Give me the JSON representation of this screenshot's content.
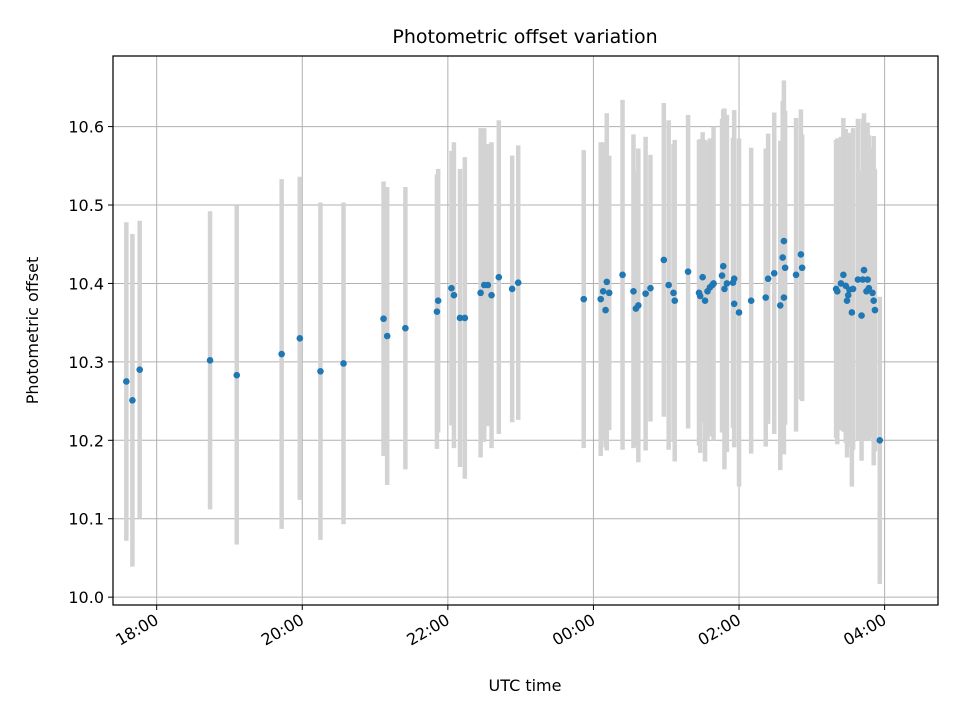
{
  "chart_data": {
    "type": "scatter",
    "title": "Photometric offset variation",
    "xlabel": "UTC time",
    "ylabel": "Photometric offset",
    "grid": true,
    "ylim": [
      9.99,
      10.69
    ],
    "xlim": [
      "17:24",
      "04:44"
    ],
    "yticks": [
      "10.0",
      "10.1",
      "10.2",
      "10.3",
      "10.4",
      "10.5",
      "10.6"
    ],
    "xticks": [
      "18:00",
      "20:00",
      "22:00",
      "00:00",
      "02:00",
      "04:00"
    ],
    "colors": {
      "marker": "#1f77b4",
      "errorbar": "#d3d3d3",
      "grid": "#b0b0b0"
    },
    "series": [
      {
        "points": [
          {
            "x": "17:35",
            "y": 10.275,
            "err": 0.203
          },
          {
            "x": "17:40",
            "y": 10.251,
            "err": 0.212
          },
          {
            "x": "17:46",
            "y": 10.29,
            "err": 0.19
          },
          {
            "x": "18:44",
            "y": 10.302,
            "err": 0.19
          },
          {
            "x": "19:06",
            "y": 10.283,
            "err": 0.216
          },
          {
            "x": "19:43",
            "y": 10.31,
            "err": 0.223
          },
          {
            "x": "19:58",
            "y": 10.33,
            "err": 0.206
          },
          {
            "x": "20:15",
            "y": 10.288,
            "err": 0.215
          },
          {
            "x": "20:34",
            "y": 10.298,
            "err": 0.205
          },
          {
            "x": "21:07",
            "y": 10.355,
            "err": 0.175
          },
          {
            "x": "21:10",
            "y": 10.333,
            "err": 0.19
          },
          {
            "x": "21:25",
            "y": 10.343,
            "err": 0.18
          },
          {
            "x": "21:51",
            "y": 10.364,
            "err": 0.175
          },
          {
            "x": "21:52",
            "y": 10.378,
            "err": 0.168
          },
          {
            "x": "22:03",
            "y": 10.394,
            "err": 0.175
          },
          {
            "x": "22:05",
            "y": 10.385,
            "err": 0.195
          },
          {
            "x": "22:10",
            "y": 10.356,
            "err": 0.19
          },
          {
            "x": "22:14",
            "y": 10.356,
            "err": 0.205
          },
          {
            "x": "22:27",
            "y": 10.388,
            "err": 0.21
          },
          {
            "x": "22:30",
            "y": 10.398,
            "err": 0.2
          },
          {
            "x": "22:33",
            "y": 10.398,
            "err": 0.18
          },
          {
            "x": "22:36",
            "y": 10.385,
            "err": 0.195
          },
          {
            "x": "22:42",
            "y": 10.408,
            "err": 0.2
          },
          {
            "x": "22:53",
            "y": 10.393,
            "err": 0.17
          },
          {
            "x": "22:58",
            "y": 10.401,
            "err": 0.175
          },
          {
            "x": "23:52",
            "y": 10.38,
            "err": 0.19
          },
          {
            "x": "00:06",
            "y": 10.38,
            "err": 0.2
          },
          {
            "x": "00:08",
            "y": 10.39,
            "err": 0.19
          },
          {
            "x": "00:10",
            "y": 10.366,
            "err": 0.175
          },
          {
            "x": "00:11",
            "y": 10.402,
            "err": 0.215
          },
          {
            "x": "00:13",
            "y": 10.388,
            "err": 0.175
          },
          {
            "x": "00:24",
            "y": 10.411,
            "err": 0.223
          },
          {
            "x": "00:33",
            "y": 10.39,
            "err": 0.2
          },
          {
            "x": "00:35",
            "y": 10.368,
            "err": 0.175
          },
          {
            "x": "00:37",
            "y": 10.372,
            "err": 0.2
          },
          {
            "x": "00:43",
            "y": 10.387,
            "err": 0.2
          },
          {
            "x": "00:47",
            "y": 10.394,
            "err": 0.17
          },
          {
            "x": "00:58",
            "y": 10.43,
            "err": 0.2
          },
          {
            "x": "01:02",
            "y": 10.398,
            "err": 0.21
          },
          {
            "x": "01:06",
            "y": 10.388,
            "err": 0.19
          },
          {
            "x": "01:07",
            "y": 10.378,
            "err": 0.205
          },
          {
            "x": "01:18",
            "y": 10.415,
            "err": 0.2
          },
          {
            "x": "01:27",
            "y": 10.388,
            "err": 0.195
          },
          {
            "x": "01:28",
            "y": 10.384,
            "err": 0.2
          },
          {
            "x": "01:30",
            "y": 10.408,
            "err": 0.185
          },
          {
            "x": "01:32",
            "y": 10.378,
            "err": 0.205
          },
          {
            "x": "01:34",
            "y": 10.39,
            "err": 0.19
          },
          {
            "x": "01:36",
            "y": 10.395,
            "err": 0.19
          },
          {
            "x": "01:38",
            "y": 10.398,
            "err": 0.185
          },
          {
            "x": "01:39",
            "y": 10.4,
            "err": 0.2
          },
          {
            "x": "01:46",
            "y": 10.41,
            "err": 0.2
          },
          {
            "x": "01:47",
            "y": 10.422,
            "err": 0.2
          },
          {
            "x": "01:48",
            "y": 10.393,
            "err": 0.23
          },
          {
            "x": "01:50",
            "y": 10.4,
            "err": 0.215
          },
          {
            "x": "01:55",
            "y": 10.401,
            "err": 0.185
          },
          {
            "x": "01:56",
            "y": 10.406,
            "err": 0.215
          },
          {
            "x": "01:56",
            "y": 10.374,
            "err": 0.175
          },
          {
            "x": "02:00",
            "y": 10.363,
            "err": 0.222
          },
          {
            "x": "02:10",
            "y": 10.378,
            "err": 0.195
          },
          {
            "x": "02:22",
            "y": 10.382,
            "err": 0.19
          },
          {
            "x": "02:24",
            "y": 10.406,
            "err": 0.185
          },
          {
            "x": "02:29",
            "y": 10.413,
            "err": 0.205
          },
          {
            "x": "02:34",
            "y": 10.372,
            "err": 0.21
          },
          {
            "x": "02:36",
            "y": 10.433,
            "err": 0.2
          },
          {
            "x": "02:37",
            "y": 10.454,
            "err": 0.205
          },
          {
            "x": "02:37",
            "y": 10.382,
            "err": 0.2
          },
          {
            "x": "02:38",
            "y": 10.42,
            "err": 0.2
          },
          {
            "x": "02:47",
            "y": 10.411,
            "err": 0.2
          },
          {
            "x": "02:51",
            "y": 10.437,
            "err": 0.185
          },
          {
            "x": "02:52",
            "y": 10.42,
            "err": 0.17
          },
          {
            "x": "03:20",
            "y": 10.393,
            "err": 0.19
          },
          {
            "x": "03:21",
            "y": 10.39,
            "err": 0.195
          },
          {
            "x": "03:24",
            "y": 10.4,
            "err": 0.187
          },
          {
            "x": "03:26",
            "y": 10.411,
            "err": 0.2
          },
          {
            "x": "03:28",
            "y": 10.397,
            "err": 0.2
          },
          {
            "x": "03:29",
            "y": 10.378,
            "err": 0.2
          },
          {
            "x": "03:30",
            "y": 10.385,
            "err": 0.19
          },
          {
            "x": "03:31",
            "y": 10.392,
            "err": 0.2
          },
          {
            "x": "03:33",
            "y": 10.363,
            "err": 0.222
          },
          {
            "x": "03:34",
            "y": 10.393,
            "err": 0.205
          },
          {
            "x": "03:38",
            "y": 10.405,
            "err": 0.205
          },
          {
            "x": "03:41",
            "y": 10.359,
            "err": 0.185
          },
          {
            "x": "03:42",
            "y": 10.405,
            "err": 0.205
          },
          {
            "x": "03:43",
            "y": 10.417,
            "err": 0.2
          },
          {
            "x": "03:45",
            "y": 10.39,
            "err": 0.19
          },
          {
            "x": "03:46",
            "y": 10.405,
            "err": 0.2
          },
          {
            "x": "03:47",
            "y": 10.394,
            "err": 0.195
          },
          {
            "x": "03:50",
            "y": 10.388,
            "err": 0.185
          },
          {
            "x": "03:51",
            "y": 10.378,
            "err": 0.21
          },
          {
            "x": "03:52",
            "y": 10.366,
            "err": 0.18
          },
          {
            "x": "03:56",
            "y": 10.2,
            "err": 0.183
          }
        ]
      }
    ]
  }
}
